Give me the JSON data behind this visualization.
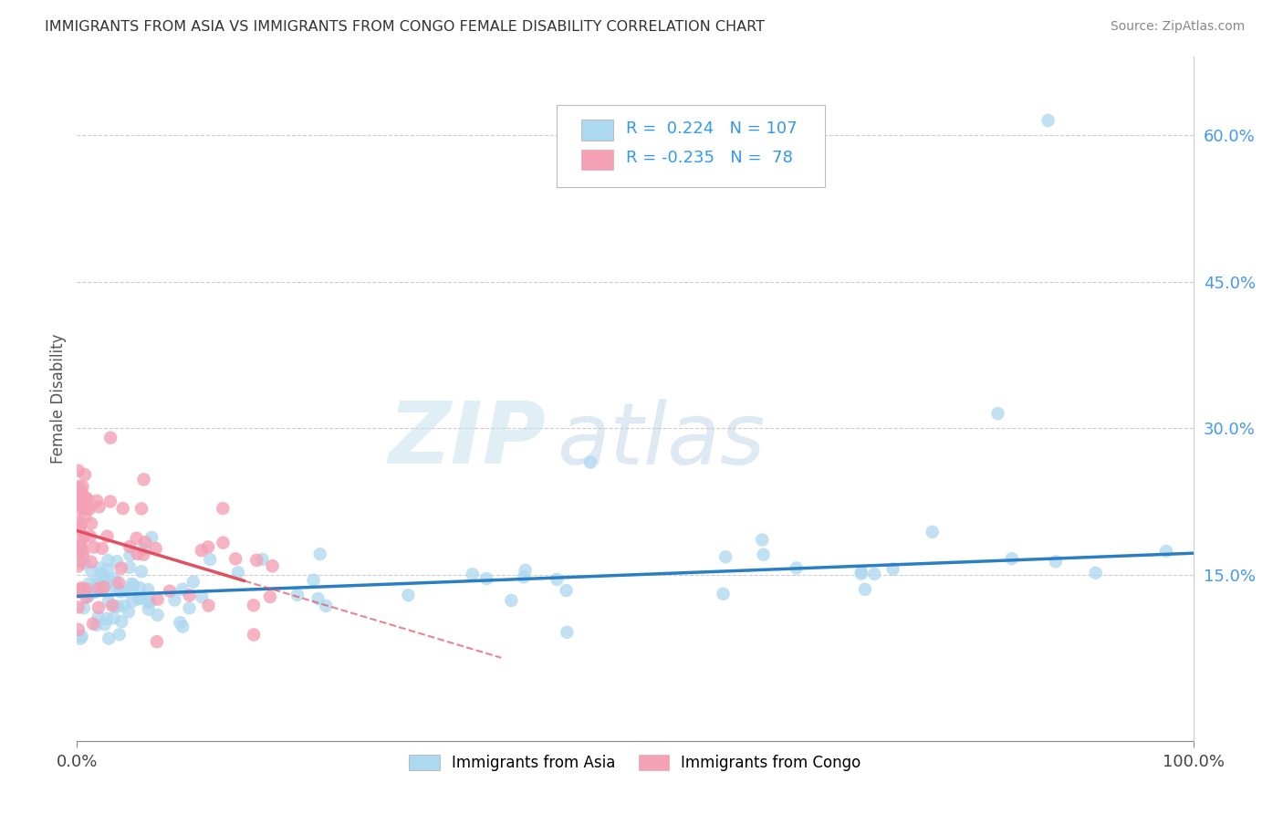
{
  "title": "IMMIGRANTS FROM ASIA VS IMMIGRANTS FROM CONGO FEMALE DISABILITY CORRELATION CHART",
  "source": "Source: ZipAtlas.com",
  "ylabel": "Female Disability",
  "xlim": [
    0,
    1.0
  ],
  "ylim": [
    -0.02,
    0.68
  ],
  "yticks_right": [
    0.15,
    0.3,
    0.45,
    0.6
  ],
  "ytick_right_labels": [
    "15.0%",
    "30.0%",
    "45.0%",
    "60.0%"
  ],
  "r_asia": 0.224,
  "n_asia": 107,
  "r_congo": -0.235,
  "n_congo": 78,
  "color_asia": "#ACD8F0",
  "color_congo": "#F4A0B5",
  "color_trend_asia": "#2B7EC1",
  "color_trend_congo": "#E05060",
  "watermark_zip": "ZIP",
  "watermark_atlas": "atlas",
  "legend_label_asia": "Immigrants from Asia",
  "legend_label_congo": "Immigrants from Congo",
  "background_color": "#ffffff",
  "asia_trend_x0": 0.0,
  "asia_trend_y0": 0.128,
  "asia_trend_x1": 1.0,
  "asia_trend_y1": 0.172,
  "congo_trend_x0": 0.0,
  "congo_trend_y0": 0.195,
  "congo_trend_x1": 0.38,
  "congo_trend_y1": 0.065
}
